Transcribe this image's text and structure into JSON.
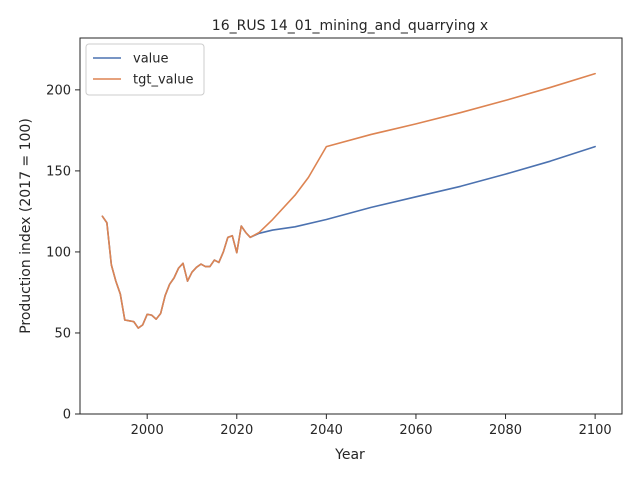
{
  "chart_data": {
    "type": "line",
    "title": "16_RUS 14_01_mining_and_quarrying x",
    "xlabel": "Year",
    "ylabel": "Production index (2017 = 100)",
    "xlim": [
      1985,
      2106
    ],
    "ylim": [
      0,
      232
    ],
    "xticks": [
      2000,
      2020,
      2040,
      2060,
      2080,
      2100
    ],
    "yticks": [
      0,
      50,
      100,
      150,
      200
    ],
    "grid": false,
    "legend_position": "top-left",
    "series": [
      {
        "name": "value",
        "color": "#4c72b0",
        "points": [
          [
            1990,
            122
          ],
          [
            1991,
            118
          ],
          [
            1992,
            92
          ],
          [
            1993,
            82
          ],
          [
            1994,
            74
          ],
          [
            1995,
            58
          ],
          [
            1996,
            57.5
          ],
          [
            1997,
            57
          ],
          [
            1998,
            53
          ],
          [
            1999,
            55
          ],
          [
            2000,
            61.5
          ],
          [
            2001,
            61
          ],
          [
            2002,
            58.5
          ],
          [
            2003,
            62
          ],
          [
            2004,
            73
          ],
          [
            2005,
            80
          ],
          [
            2006,
            84
          ],
          [
            2007,
            90
          ],
          [
            2008,
            93
          ],
          [
            2009,
            82
          ],
          [
            2010,
            87.5
          ],
          [
            2011,
            90.5
          ],
          [
            2012,
            92.5
          ],
          [
            2013,
            91
          ],
          [
            2014,
            91
          ],
          [
            2015,
            95
          ],
          [
            2016,
            93.5
          ],
          [
            2017,
            100
          ],
          [
            2018,
            109
          ],
          [
            2019,
            110
          ],
          [
            2020,
            99.5
          ],
          [
            2021,
            116
          ],
          [
            2022,
            112
          ],
          [
            2023,
            109
          ],
          [
            2025,
            111.5
          ],
          [
            2028,
            113.5
          ],
          [
            2033,
            115.5
          ],
          [
            2040,
            120
          ],
          [
            2050,
            127.5
          ],
          [
            2060,
            134
          ],
          [
            2070,
            140.5
          ],
          [
            2080,
            148
          ],
          [
            2090,
            156
          ],
          [
            2100,
            165
          ]
        ]
      },
      {
        "name": "tgt_value",
        "color": "#dd8452",
        "points": [
          [
            1990,
            122
          ],
          [
            1991,
            118
          ],
          [
            1992,
            92
          ],
          [
            1993,
            82
          ],
          [
            1994,
            74
          ],
          [
            1995,
            58
          ],
          [
            1996,
            57.5
          ],
          [
            1997,
            57
          ],
          [
            1998,
            53
          ],
          [
            1999,
            55
          ],
          [
            2000,
            61.5
          ],
          [
            2001,
            61
          ],
          [
            2002,
            58.5
          ],
          [
            2003,
            62
          ],
          [
            2004,
            73
          ],
          [
            2005,
            80
          ],
          [
            2006,
            84
          ],
          [
            2007,
            90
          ],
          [
            2008,
            93
          ],
          [
            2009,
            82
          ],
          [
            2010,
            87.5
          ],
          [
            2011,
            90.5
          ],
          [
            2012,
            92.5
          ],
          [
            2013,
            91
          ],
          [
            2014,
            91
          ],
          [
            2015,
            95
          ],
          [
            2016,
            93.5
          ],
          [
            2017,
            100
          ],
          [
            2018,
            109
          ],
          [
            2019,
            110
          ],
          [
            2020,
            99.5
          ],
          [
            2021,
            116
          ],
          [
            2022,
            112
          ],
          [
            2023,
            109
          ],
          [
            2025,
            112
          ],
          [
            2028,
            120
          ],
          [
            2033,
            135
          ],
          [
            2036,
            146
          ],
          [
            2040,
            165
          ],
          [
            2050,
            172.5
          ],
          [
            2060,
            179
          ],
          [
            2070,
            186
          ],
          [
            2080,
            193.5
          ],
          [
            2090,
            201.5
          ],
          [
            2100,
            210
          ]
        ]
      }
    ]
  }
}
